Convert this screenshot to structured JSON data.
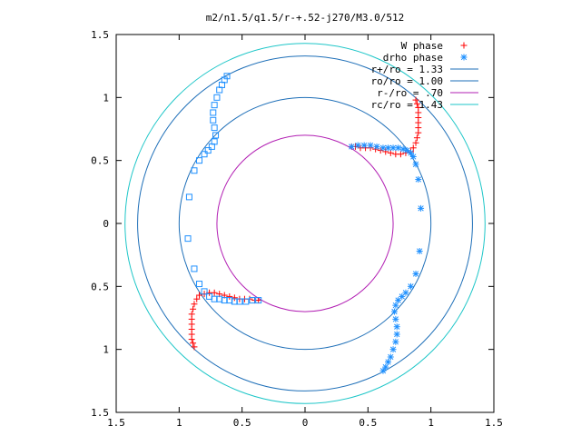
{
  "chart_data": {
    "type": "scatter",
    "title": "m2/n1.5/q1.5/r-+.52-j270/M3.0/512",
    "xlabel": "",
    "ylabel": "",
    "xlim": [
      -1.5,
      1.5
    ],
    "ylim": [
      -1.5,
      1.5
    ],
    "x_tick_values": [
      -1.5,
      -1,
      -0.5,
      0,
      0.5,
      1,
      1.5
    ],
    "x_tick_labels": [
      "1.5",
      "1",
      "0.5",
      "0",
      "0.5",
      "1",
      "1.5"
    ],
    "y_tick_values": [
      1.5,
      1,
      0.5,
      0,
      -0.5,
      -1,
      -1.5
    ],
    "y_tick_labels": [
      "1.5",
      "1",
      "0.5",
      "0",
      "0.5",
      "1",
      "1.5"
    ],
    "grid": false,
    "legend_position": "top-right",
    "circles": [
      {
        "label": "r+/ro = 1.33",
        "radius": 1.33,
        "color": "#1e6fb8"
      },
      {
        "label": "ro/ro = 1.00",
        "radius": 1.0,
        "color": "#1e6fb8"
      },
      {
        "label": "r-/ro =  .70",
        "radius": 0.7,
        "color": "#b21fb3"
      },
      {
        "label": "rc/ro = 1.43",
        "radius": 1.43,
        "color": "#1ec6c8"
      }
    ],
    "series": [
      {
        "name": "W phase",
        "marker": "plus",
        "color": "#ff0000",
        "points": [
          [
            0.88,
            0.98
          ],
          [
            0.89,
            0.95
          ],
          [
            0.9,
            0.92
          ],
          [
            0.9,
            0.88
          ],
          [
            0.9,
            0.84
          ],
          [
            0.9,
            0.8
          ],
          [
            0.9,
            0.76
          ],
          [
            0.9,
            0.72
          ],
          [
            0.89,
            0.68
          ],
          [
            0.88,
            0.64
          ],
          [
            0.86,
            0.6
          ],
          [
            0.84,
            0.57
          ],
          [
            0.8,
            0.56
          ],
          [
            0.76,
            0.55
          ],
          [
            0.72,
            0.55
          ],
          [
            0.68,
            0.56
          ],
          [
            0.64,
            0.57
          ],
          [
            0.6,
            0.58
          ],
          [
            0.56,
            0.59
          ],
          [
            0.52,
            0.6
          ],
          [
            0.48,
            0.6
          ],
          [
            0.44,
            0.6
          ],
          [
            0.4,
            0.61
          ],
          [
            0.37,
            0.61
          ],
          [
            -0.88,
            -0.98
          ],
          [
            -0.89,
            -0.95
          ],
          [
            -0.9,
            -0.92
          ],
          [
            -0.9,
            -0.88
          ],
          [
            -0.9,
            -0.84
          ],
          [
            -0.9,
            -0.8
          ],
          [
            -0.9,
            -0.76
          ],
          [
            -0.9,
            -0.72
          ],
          [
            -0.89,
            -0.68
          ],
          [
            -0.88,
            -0.64
          ],
          [
            -0.86,
            -0.6
          ],
          [
            -0.84,
            -0.57
          ],
          [
            -0.8,
            -0.56
          ],
          [
            -0.76,
            -0.55
          ],
          [
            -0.72,
            -0.55
          ],
          [
            -0.68,
            -0.56
          ],
          [
            -0.64,
            -0.57
          ],
          [
            -0.6,
            -0.58
          ],
          [
            -0.56,
            -0.59
          ],
          [
            -0.52,
            -0.6
          ],
          [
            -0.48,
            -0.6
          ],
          [
            -0.44,
            -0.6
          ],
          [
            -0.4,
            -0.61
          ],
          [
            -0.37,
            -0.61
          ]
        ]
      },
      {
        "name": "drho phase",
        "marker": "star",
        "color": "#1e90ff",
        "points": [
          [
            0.37,
            0.61
          ],
          [
            0.42,
            0.62
          ],
          [
            0.47,
            0.62
          ],
          [
            0.52,
            0.62
          ],
          [
            0.57,
            0.61
          ],
          [
            0.62,
            0.6
          ],
          [
            0.66,
            0.6
          ],
          [
            0.7,
            0.6
          ],
          [
            0.74,
            0.6
          ],
          [
            0.78,
            0.59
          ],
          [
            0.81,
            0.58
          ],
          [
            0.84,
            0.56
          ],
          [
            0.86,
            0.53
          ],
          [
            0.88,
            0.47
          ],
          [
            0.9,
            0.35
          ],
          [
            0.92,
            0.12
          ],
          [
            0.91,
            -0.22
          ],
          [
            0.88,
            -0.4
          ],
          [
            0.84,
            -0.5
          ],
          [
            0.8,
            -0.55
          ],
          [
            0.77,
            -0.58
          ],
          [
            0.74,
            -0.61
          ],
          [
            0.72,
            -0.65
          ],
          [
            0.71,
            -0.7
          ],
          [
            0.72,
            -0.76
          ],
          [
            0.73,
            -0.82
          ],
          [
            0.73,
            -0.88
          ],
          [
            0.72,
            -0.94
          ],
          [
            0.7,
            -1.0
          ],
          [
            0.68,
            -1.06
          ],
          [
            0.66,
            -1.1
          ],
          [
            0.64,
            -1.14
          ],
          [
            0.62,
            -1.17
          ]
        ]
      },
      {
        "name": "",
        "marker": "square",
        "color": "#1e90ff",
        "points": [
          [
            -0.62,
            1.17
          ],
          [
            -0.64,
            1.14
          ],
          [
            -0.66,
            1.1
          ],
          [
            -0.68,
            1.06
          ],
          [
            -0.7,
            1.0
          ],
          [
            -0.72,
            0.94
          ],
          [
            -0.73,
            0.88
          ],
          [
            -0.73,
            0.82
          ],
          [
            -0.72,
            0.76
          ],
          [
            -0.71,
            0.7
          ],
          [
            -0.72,
            0.65
          ],
          [
            -0.74,
            0.61
          ],
          [
            -0.77,
            0.58
          ],
          [
            -0.8,
            0.55
          ],
          [
            -0.84,
            0.5
          ],
          [
            -0.88,
            0.42
          ],
          [
            -0.92,
            0.21
          ],
          [
            -0.93,
            -0.12
          ],
          [
            -0.88,
            -0.36
          ],
          [
            -0.84,
            -0.48
          ],
          [
            -0.8,
            -0.54
          ],
          [
            -0.76,
            -0.58
          ],
          [
            -0.72,
            -0.6
          ],
          [
            -0.68,
            -0.6
          ],
          [
            -0.64,
            -0.61
          ],
          [
            -0.6,
            -0.61
          ],
          [
            -0.56,
            -0.62
          ],
          [
            -0.52,
            -0.62
          ],
          [
            -0.47,
            -0.62
          ],
          [
            -0.42,
            -0.61
          ],
          [
            -0.37,
            -0.61
          ]
        ]
      }
    ]
  }
}
